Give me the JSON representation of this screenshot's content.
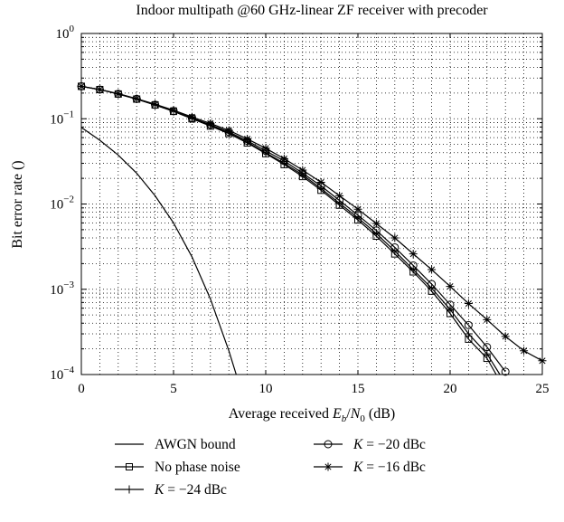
{
  "chart_data": {
    "type": "line",
    "title": "Indoor multipath @60 GHz-linear ZF receiver with precoder",
    "xlabel": {
      "prefix": "Average received ",
      "var": "E",
      "sub": "b",
      "mid": "/",
      "var2": "N",
      "sub2": "0",
      "suffix": " (dB)"
    },
    "ylabel": "Bit error rate ()",
    "xlim": [
      0,
      25
    ],
    "ylim": [
      0.0001,
      1
    ],
    "yscale": "log",
    "grid": true,
    "x_ticks": [
      "0",
      "5",
      "10",
      "15",
      "20",
      "25"
    ],
    "y_ticks": [
      {
        "base": "10",
        "exp": "0",
        "value": 1
      },
      {
        "base": "10",
        "exp": "−1",
        "value": 0.1
      },
      {
        "base": "10",
        "exp": "−2",
        "value": 0.01
      },
      {
        "base": "10",
        "exp": "−3",
        "value": 0.001
      },
      {
        "base": "10",
        "exp": "−4",
        "value": 0.0001
      }
    ],
    "legend_placement": "below",
    "series": [
      {
        "name": "AWGN bound",
        "marker": "none",
        "x": [
          0,
          1,
          2,
          3,
          4,
          5,
          6,
          7,
          8,
          8.4
        ],
        "y": [
          0.079,
          0.056,
          0.0375,
          0.023,
          0.0125,
          0.006,
          0.0024,
          0.00077,
          0.00019,
          0.0001
        ]
      },
      {
        "name": "No phase noise",
        "marker": "square",
        "x": [
          0,
          1,
          2,
          3,
          4,
          5,
          6,
          7,
          8,
          9,
          10,
          11,
          12,
          13,
          14,
          15,
          16,
          17,
          18,
          19,
          20,
          21,
          22,
          22.5
        ],
        "y": [
          0.24,
          0.22,
          0.195,
          0.17,
          0.145,
          0.122,
          0.1,
          0.082,
          0.067,
          0.052,
          0.039,
          0.029,
          0.021,
          0.0145,
          0.0097,
          0.0065,
          0.0042,
          0.0026,
          0.0016,
          0.00095,
          0.00052,
          0.00026,
          0.000155,
          0.0001
        ]
      },
      {
        "name": "K = −24 dBc",
        "marker": "plus",
        "x": [
          0,
          1,
          2,
          3,
          4,
          5,
          6,
          7,
          8,
          9,
          10,
          11,
          12,
          13,
          14,
          15,
          16,
          17,
          18,
          19,
          20,
          21,
          22,
          22.7
        ],
        "y": [
          0.24,
          0.22,
          0.195,
          0.17,
          0.145,
          0.122,
          0.1,
          0.083,
          0.068,
          0.053,
          0.04,
          0.03,
          0.022,
          0.0152,
          0.0102,
          0.0069,
          0.0045,
          0.0028,
          0.0017,
          0.00103,
          0.00058,
          0.0003,
          0.000175,
          0.0001
        ]
      },
      {
        "name": "K = −20 dBc",
        "marker": "circle",
        "x": [
          0,
          1,
          2,
          3,
          4,
          5,
          6,
          7,
          8,
          9,
          10,
          11,
          12,
          13,
          14,
          15,
          16,
          17,
          18,
          19,
          20,
          21,
          22,
          23
        ],
        "y": [
          0.24,
          0.22,
          0.196,
          0.171,
          0.146,
          0.123,
          0.102,
          0.085,
          0.07,
          0.055,
          0.042,
          0.032,
          0.023,
          0.0163,
          0.011,
          0.0074,
          0.0049,
          0.0031,
          0.0019,
          0.00115,
          0.00066,
          0.00038,
          0.00021,
          0.000108
        ]
      },
      {
        "name": "K = −16 dBc",
        "marker": "star",
        "x": [
          0,
          1,
          2,
          3,
          4,
          5,
          6,
          7,
          8,
          9,
          10,
          11,
          12,
          13,
          14,
          15,
          16,
          17,
          18,
          19,
          20,
          21,
          22,
          23,
          24,
          25
        ],
        "y": [
          0.24,
          0.22,
          0.197,
          0.172,
          0.148,
          0.126,
          0.105,
          0.088,
          0.073,
          0.058,
          0.045,
          0.034,
          0.025,
          0.018,
          0.0125,
          0.0087,
          0.0059,
          0.004,
          0.0026,
          0.0017,
          0.00108,
          0.00068,
          0.00044,
          0.00028,
          0.00019,
          0.000145
        ]
      }
    ]
  },
  "legend": [
    {
      "text": "AWGN bound",
      "marker": "none"
    },
    {
      "text": "No phase noise",
      "marker": "square"
    },
    {
      "text": "K = −24 dBc",
      "var": "K",
      "rest": " = −24 dBc",
      "marker": "plus"
    },
    {
      "text": "K = −20 dBc",
      "var": "K",
      "rest": " = −20 dBc",
      "marker": "circle"
    },
    {
      "text": "K = −16 dBc",
      "var": "K",
      "rest": " = −16 dBc",
      "marker": "star"
    }
  ]
}
